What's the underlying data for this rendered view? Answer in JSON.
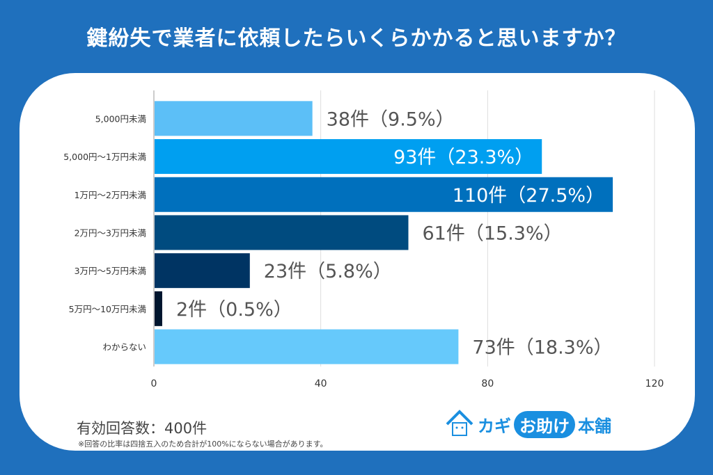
{
  "title": "鍵紛失で業者に依頼したらいくらかかると思いますか？",
  "chart_data": {
    "type": "bar",
    "orientation": "horizontal",
    "categories": [
      "5,000円未満",
      "5,000円〜1万円未満",
      "1万円〜2万円未満",
      "2万円〜3万円未満",
      "3万円〜5万円未満",
      "5万円〜10万円未満",
      "わからない"
    ],
    "values": [
      38,
      93,
      110,
      61,
      23,
      2,
      73
    ],
    "data_labels": [
      "38件（9.5%）",
      "93件（23.3%）",
      "110件（27.5%）",
      "61件（15.3%）",
      "23件（5.8%）",
      "2件（0.5%）",
      "73件（18.3%）"
    ],
    "colors": [
      "#5cbff7",
      "#009ff0",
      "#0070bd",
      "#004b7f",
      "#003463",
      "#00152e",
      "#66c9fb"
    ],
    "xlim": [
      0,
      120
    ],
    "xticks": [
      "0",
      "40",
      "80",
      "120"
    ],
    "grid": true
  },
  "footer": {
    "responses": "有効回答数：400件",
    "note": "※回答の比率は四捨五入のため合計が100%にならない場合があります。"
  },
  "logo": {
    "text1": "カギ",
    "text2": "お助け",
    "text3": "本舗"
  }
}
